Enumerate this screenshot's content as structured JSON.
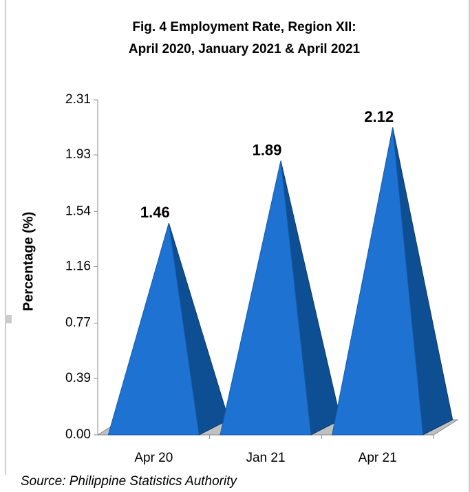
{
  "chart_data": {
    "type": "pyramid3d",
    "title": "Fig. 4 Employment Rate, Region XII:",
    "subtitle": "April 2020, January 2021 & April 2021",
    "y_label": "Percentage (%)",
    "source": "Source: Philippine Statistics Authority",
    "categories": [
      "Apr 20",
      "Jan 21",
      "Apr 21"
    ],
    "values": [
      1.46,
      1.89,
      2.12
    ],
    "color": "#1e73d2",
    "side_color": "#0e4f94",
    "ylim": [
      0,
      2.31
    ],
    "yticks": [
      {
        "value": 0,
        "label": "0.00"
      },
      0.39,
      0.77,
      1.16,
      1.54,
      1.93,
      2.31
    ],
    "grid": false
  }
}
